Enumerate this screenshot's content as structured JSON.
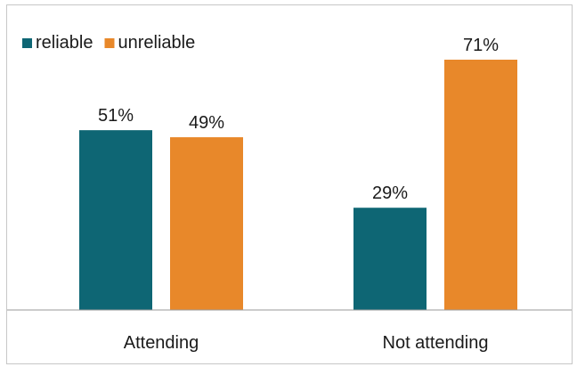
{
  "chart_data": {
    "type": "bar",
    "categories": [
      "Attending",
      "Not attending"
    ],
    "series": [
      {
        "name": "reliable",
        "values": [
          51,
          29
        ],
        "color": "#0e6674"
      },
      {
        "name": "unreliable",
        "values": [
          49,
          71
        ],
        "color": "#e8882a"
      }
    ],
    "value_suffix": "%",
    "ylim": [
      0,
      100
    ],
    "legend_position": "top-left",
    "grid": false,
    "title": "",
    "xlabel": "",
    "ylabel": ""
  }
}
